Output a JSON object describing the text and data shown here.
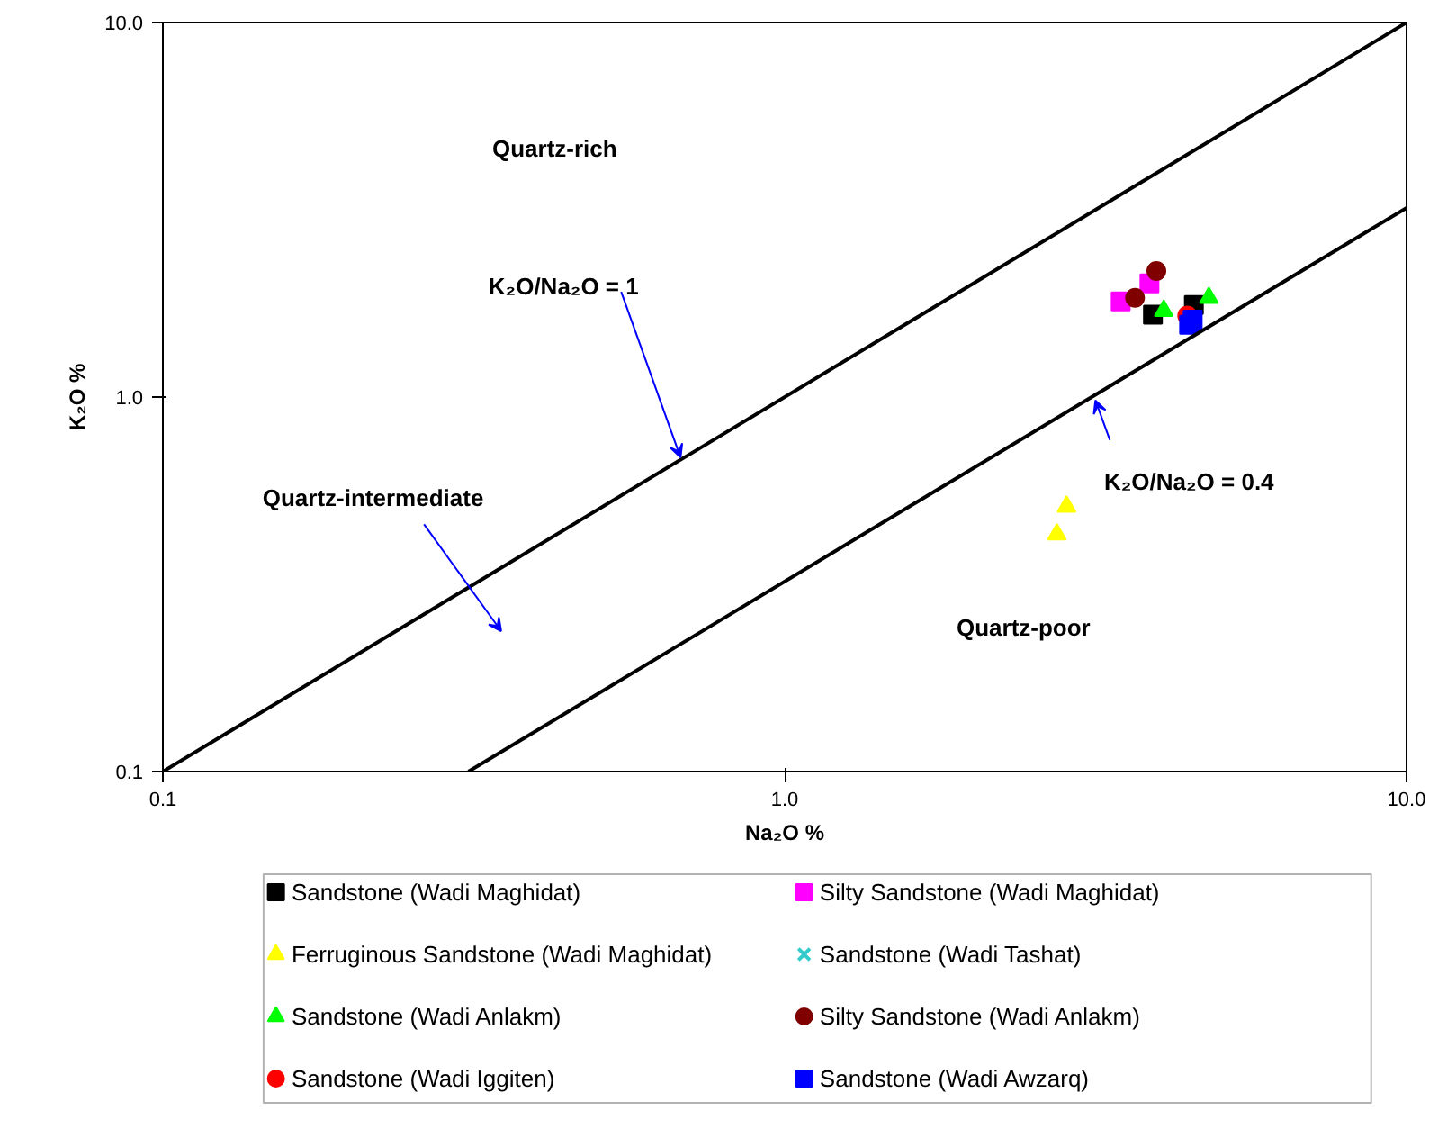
{
  "chart_data": {
    "type": "scatter",
    "xlabel": "Na₂O %",
    "ylabel": "K₂O %",
    "log": "xy",
    "grid": false,
    "legend": "bottom",
    "xlim": [
      0.1,
      10
    ],
    "ylim": [
      0.1,
      10
    ],
    "xticks": [
      0.1,
      {
        "value": 1,
        "label": "1.0"
      },
      {
        "value": 10,
        "label": "10.0"
      }
    ],
    "yticks": [
      0.1,
      {
        "value": 1,
        "label": "1.0"
      },
      {
        "value": 10,
        "label": "10.0"
      }
    ],
    "series": [
      {
        "name": "Sandstone (Wadi Maghidat)",
        "color": "#000000",
        "marker": "square",
        "x": [
          3.91,
          4.55
        ],
        "values": [
          1.66,
          1.76
        ]
      },
      {
        "name": "Silty Sandstone (Wadi Maghidat)",
        "color": "#ff00ff",
        "marker": "square",
        "x": [
          3.47,
          3.86
        ],
        "values": [
          1.8,
          2.01
        ]
      },
      {
        "name": "Ferruginous Sandstone (Wadi Maghidat)",
        "color": "#ffff00",
        "marker": "triangle",
        "x": [
          2.84,
          2.74
        ],
        "values": [
          0.51,
          0.43
        ]
      },
      {
        "name": "Sandstone (Wadi Tashat)",
        "color": "#33cccc",
        "marker": "cross"
      },
      {
        "name": "Sandstone (Wadi Anlakm)",
        "color": "#00ff00",
        "marker": "triangle",
        "x": [
          4.07,
          4.81
        ],
        "values": [
          1.7,
          1.84
        ]
      },
      {
        "name": "Silty Sandstone (Wadi Anlakm)",
        "color": "#800000",
        "marker": "circle",
        "x": [
          3.66,
          3.96
        ],
        "values": [
          1.84,
          2.17
        ]
      },
      {
        "name": "Sandstone (Wadi Iggiten)",
        "color": "#ff0000",
        "marker": "circle",
        "x": [
          4.44
        ],
        "values": [
          1.65
        ]
      },
      {
        "name": "Sandstone (Wadi Awzarq)",
        "color": "#0000ff",
        "marker": "square",
        "x": [
          4.53,
          4.47
        ],
        "values": [
          1.61,
          1.56
        ]
      },
      {
        "type": "line",
        "color": "#000000",
        "marker": "none",
        "x": [
          0.1,
          10
        ],
        "values": [
          0.1,
          10
        ]
      },
      {
        "type": "line",
        "color": "#000000",
        "marker": "none",
        "x": [
          0.31,
          10
        ],
        "values": [
          0.1,
          3.2
        ]
      }
    ],
    "annotations": [
      "Quartz-rich",
      {
        "text": "K₂O/Na₂O = 1",
        "x": 0.68,
        "y": 0.69
      },
      "Quartz-intermediate",
      {
        "text": "K₂O/Na₂O = 0.4",
        "x": 3.16,
        "y": 0.98
      },
      "Quartz-poor"
    ]
  }
}
